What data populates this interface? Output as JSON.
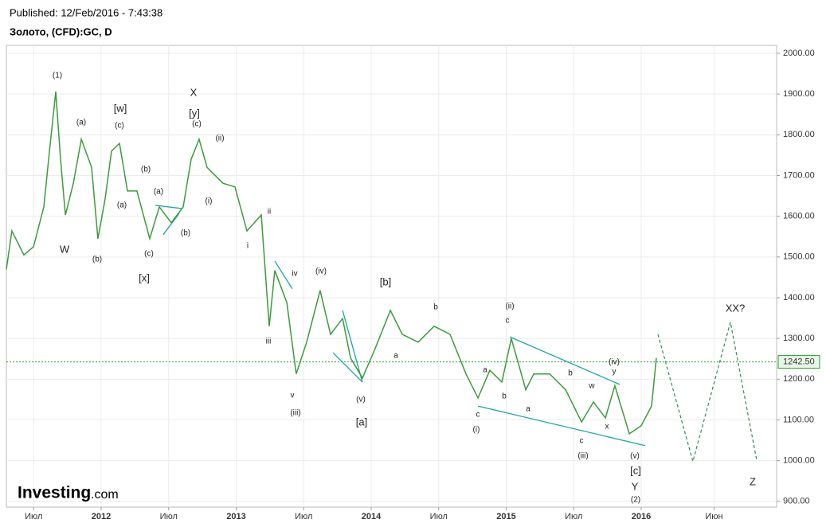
{
  "published": "Published: 12/Feb/2016 - 7:43:38",
  "chart_data": {
    "type": "line",
    "title": "Золото, (CFD):GC, D",
    "color": "#3c9a3c",
    "x": [
      2011.298,
      2011.339,
      2011.428,
      2011.499,
      2011.575,
      2011.617,
      2011.664,
      2011.699,
      2011.735,
      2011.794,
      2011.853,
      2011.929,
      2011.976,
      2012.029,
      2012.077,
      2012.136,
      2012.195,
      2012.265,
      2012.36,
      2012.431,
      2012.519,
      2012.608,
      2012.667,
      2012.726,
      2012.785,
      2012.903,
      2012.991,
      2013.08,
      2013.186,
      2013.245,
      2013.286,
      2013.375,
      2013.445,
      2013.522,
      2013.622,
      2013.699,
      2013.788,
      2013.847,
      2013.935,
      2014.024,
      2014.142,
      2014.23,
      2014.348,
      2014.466,
      2014.584,
      2014.702,
      2014.791,
      2014.879,
      2014.968,
      2015.038,
      2015.145,
      2015.204,
      2015.322,
      2015.44,
      2015.558,
      2015.646,
      2015.735,
      2015.805,
      2015.912,
      2016.0,
      2016.077,
      2016.112
    ],
    "values": [
      1470,
      1564,
      1505,
      1525,
      1623,
      1760,
      1906,
      1740,
      1603,
      1681,
      1789,
      1720,
      1545,
      1642,
      1760,
      1779,
      1662,
      1662,
      1545,
      1623,
      1584,
      1623,
      1740,
      1789,
      1720,
      1681,
      1672,
      1564,
      1603,
      1330,
      1467,
      1388,
      1213,
      1291,
      1418,
      1310,
      1349,
      1252,
      1203,
      1271,
      1369,
      1310,
      1291,
      1330,
      1310,
      1213,
      1154,
      1222,
      1193,
      1300,
      1174,
      1213,
      1213,
      1174,
      1095,
      1144,
      1105,
      1184,
      1066,
      1086,
      1134,
      1252
    ],
    "last_price": {
      "value": 1242.5,
      "label": "1242.50",
      "color": "#2e9e2e"
    },
    "projection": {
      "color": "#2e8b57",
      "x": [
        2016.124,
        2016.383,
        2016.661,
        2016.855
      ],
      "values": [
        1310,
        998,
        1340,
        1002
      ]
    },
    "trendline_color": "#1fa3a3",
    "trendlines": [
      {
        "x": [
          2015.027,
          2015.841
        ],
        "values": [
          1304,
          1187
        ]
      },
      {
        "x": [
          2014.791,
          2016.029
        ],
        "values": [
          1134,
          1037
        ]
      },
      {
        "x": [
          2013.286,
          2013.416
        ],
        "values": [
          1490,
          1422
        ]
      },
      {
        "x": [
          2013.788,
          2013.935
        ],
        "values": [
          1369,
          1193
        ]
      },
      {
        "x": [
          2013.717,
          2013.935
        ],
        "values": [
          1265,
          1193
        ]
      },
      {
        "x": [
          2012.46,
          2012.578
        ],
        "values": [
          1555,
          1607
        ]
      },
      {
        "x": [
          2012.401,
          2012.596
        ],
        "values": [
          1627,
          1619
        ]
      }
    ],
    "annotations": [
      "(1)",
      "(a)",
      "[w]",
      "(c)",
      "(b)",
      "(a)",
      "(a)",
      "(b)",
      "(c)",
      "(b)",
      "W",
      "[x]",
      "X",
      "[y]",
      "(c)",
      "(ii)",
      "(i)",
      "ii",
      "i",
      "iv",
      "(iv)",
      "iii",
      "v",
      "(iii)",
      "[b]",
      "a",
      "(v)",
      "[a]",
      "b",
      "(ii)",
      "c",
      "a",
      "b",
      "a",
      "c",
      "(i)",
      "b",
      "w",
      "(iv)",
      "y",
      "x",
      "c",
      "(iii)",
      "(v)",
      "[c]",
      "Y",
      "(2)",
      "XX?",
      "Z"
    ],
    "xlim": [
      2011.298,
      2017.003
    ],
    "xticks": [
      {
        "value": 2011.5,
        "label": "Июл"
      },
      2012,
      {
        "value": 2012.5,
        "label": "Июл"
      },
      2013,
      {
        "value": 2013.5,
        "label": "Июл"
      },
      2014,
      {
        "value": 2014.5,
        "label": "Июл"
      },
      2015,
      {
        "value": 2015.5,
        "label": "Июл"
      },
      2016,
      {
        "value": 2016.54,
        "label": "Июн"
      }
    ],
    "ylim": [
      886,
      2019.5
    ],
    "yticks": [
      {
        "value": 2000,
        "label": "2000.00"
      },
      {
        "value": 1900,
        "label": "1900.00"
      },
      {
        "value": 1800,
        "label": "1800.00"
      },
      {
        "value": 1700,
        "label": "1700.00"
      },
      {
        "value": 1600,
        "label": "1600.00"
      },
      {
        "value": 1500,
        "label": "1500.00"
      },
      {
        "value": 1400,
        "label": "1400.00"
      },
      {
        "value": 1300,
        "label": "1300.00"
      },
      {
        "value": 1200,
        "label": "1200.00"
      },
      {
        "value": 1100,
        "label": "1100.00"
      },
      {
        "value": 1000,
        "label": "1000.00"
      },
      {
        "value": 900,
        "label": "900.00"
      }
    ],
    "grid": true
  },
  "logo": {
    "brand": "Investing",
    "suffix": ".com"
  }
}
